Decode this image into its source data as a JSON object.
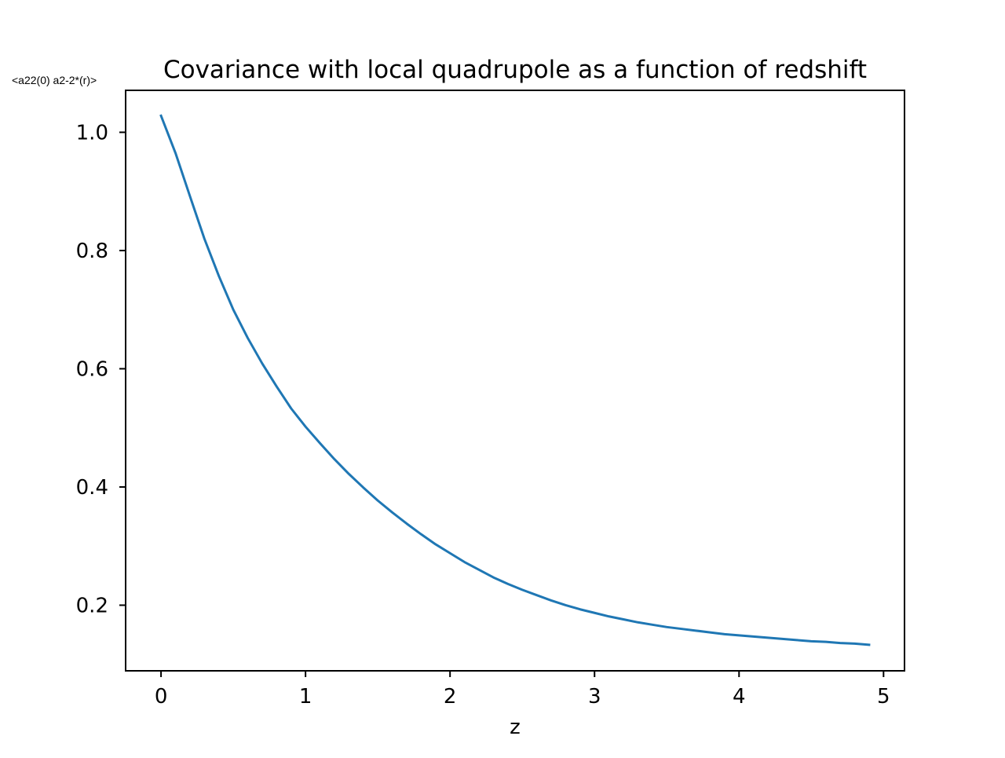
{
  "chart_data": {
    "type": "line",
    "title": "Covariance with local quadrupole as a function of redshift",
    "ylabel": "<a22(0) a2-2*(r)>",
    "xlabel": "z",
    "xlim": [
      -0.245,
      5.145
    ],
    "ylim": [
      0.089,
      1.071
    ],
    "x_ticks": [
      0,
      1,
      2,
      3,
      4,
      5
    ],
    "y_ticks": [
      0.2,
      0.4,
      0.6,
      0.8,
      1.0
    ],
    "x_tick_labels": [
      "0",
      "1",
      "2",
      "3",
      "4",
      "5"
    ],
    "y_tick_labels": [
      "0.2",
      "0.4",
      "0.6",
      "0.8",
      "1.0"
    ],
    "grid": false,
    "legend": "none",
    "series": [
      {
        "color": "#1f77b4",
        "x": [
          0.0,
          0.1,
          0.2,
          0.3,
          0.4,
          0.5,
          0.6,
          0.7,
          0.8,
          0.9,
          1.0,
          1.1,
          1.2,
          1.3,
          1.4,
          1.5,
          1.6,
          1.7,
          1.8,
          1.9,
          2.0,
          2.1,
          2.2,
          2.3,
          2.4,
          2.5,
          2.6,
          2.7,
          2.8,
          2.9,
          3.0,
          3.1,
          3.2,
          3.3,
          3.4,
          3.5,
          3.6,
          3.7,
          3.8,
          3.9,
          4.0,
          4.1,
          4.2,
          4.3,
          4.4,
          4.5,
          4.6,
          4.7,
          4.8,
          4.9
        ],
        "y": [
          1.028,
          0.965,
          0.892,
          0.82,
          0.757,
          0.7,
          0.652,
          0.609,
          0.57,
          0.533,
          0.502,
          0.474,
          0.447,
          0.422,
          0.399,
          0.377,
          0.357,
          0.338,
          0.32,
          0.303,
          0.288,
          0.273,
          0.26,
          0.247,
          0.236,
          0.226,
          0.217,
          0.208,
          0.2,
          0.193,
          0.187,
          0.181,
          0.176,
          0.171,
          0.167,
          0.163,
          0.16,
          0.157,
          0.154,
          0.151,
          0.149,
          0.147,
          0.145,
          0.143,
          0.141,
          0.139,
          0.138,
          0.136,
          0.135,
          0.133
        ]
      }
    ]
  }
}
